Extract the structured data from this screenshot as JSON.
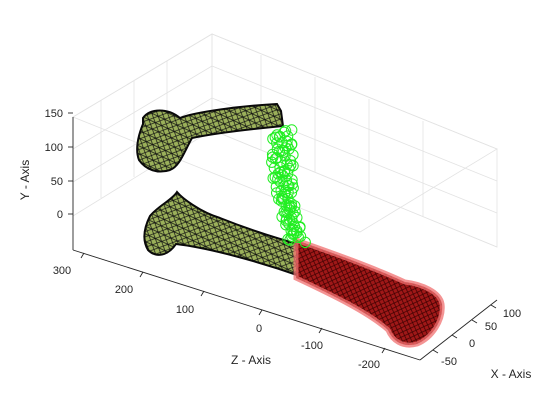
{
  "chart_data": {
    "type": "scatter",
    "projection": "3d",
    "title": "",
    "xlabel": "X - Axis",
    "ylabel": "Y - Axis",
    "zlabel": "Z - Axis",
    "xticks": [
      "-50",
      "0",
      "50",
      "100"
    ],
    "yticks": [
      "0",
      "50",
      "100",
      "150"
    ],
    "zticks": [
      "-200",
      "-100",
      "0",
      "100",
      "200",
      "300"
    ],
    "xlim": [
      -70,
      120
    ],
    "ylim": [
      -40,
      160
    ],
    "zlim": [
      -260,
      320
    ],
    "grid": true,
    "series": [
      {
        "kind": "mesh",
        "wire_color": "#111111",
        "fill_color": "#9bb05a",
        "values": [
          [
            0,
            130,
            230
          ],
          [
            0,
            150,
            150
          ],
          [
            0,
            160,
            50
          ]
        ]
      },
      {
        "kind": "mesh",
        "wire_color": "#111111",
        "fill_color": "#9bb05a",
        "values": [
          [
            0,
            0,
            230
          ],
          [
            0,
            10,
            150
          ],
          [
            0,
            20,
            50
          ]
        ]
      },
      {
        "kind": "mesh-overlay",
        "wire_color": "#8b0000",
        "fill_color": "#e53030",
        "values": [
          [
            0,
            15,
            40
          ],
          [
            0,
            25,
            -80
          ],
          [
            0,
            30,
            -200
          ]
        ]
      },
      {
        "kind": "markers",
        "marker": "circle",
        "color": "#22ee22",
        "values": [
          [
            5,
            145,
            40
          ],
          [
            8,
            110,
            36
          ],
          [
            10,
            75,
            32
          ],
          [
            12,
            40,
            28
          ]
        ]
      }
    ]
  }
}
